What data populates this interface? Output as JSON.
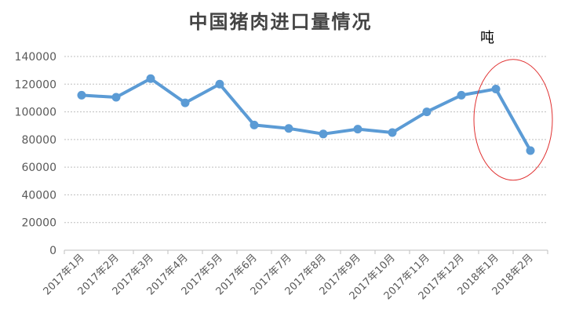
{
  "chart_data": {
    "type": "line",
    "title": "中国猪肉进口量情况",
    "unit_label": "吨",
    "categories": [
      "2017年1月",
      "2017年2月",
      "2017年3月",
      "2017年4月",
      "2017年5月",
      "2017年6月",
      "2017年7月",
      "2017年8月",
      "2017年9月",
      "2017年10月",
      "2017年11月",
      "2017年12月",
      "2018年1月",
      "2018年2月"
    ],
    "series": [
      {
        "values": [
          112000,
          110500,
          124000,
          106500,
          120000,
          90500,
          88000,
          84000,
          87500,
          85000,
          100000,
          112000,
          116500,
          72000
        ]
      }
    ],
    "ylim": [
      0,
      140000
    ],
    "yticks": [
      0,
      20000,
      40000,
      60000,
      80000,
      100000,
      120000,
      140000
    ],
    "grid": true,
    "legend": "none",
    "annotation": "red-ellipse-around-last-two-points",
    "colors": {
      "line": "#5B9BD5",
      "grid": "#BFBFBF",
      "axis": "#BFBFBF",
      "ellipse": "#E03030"
    }
  }
}
